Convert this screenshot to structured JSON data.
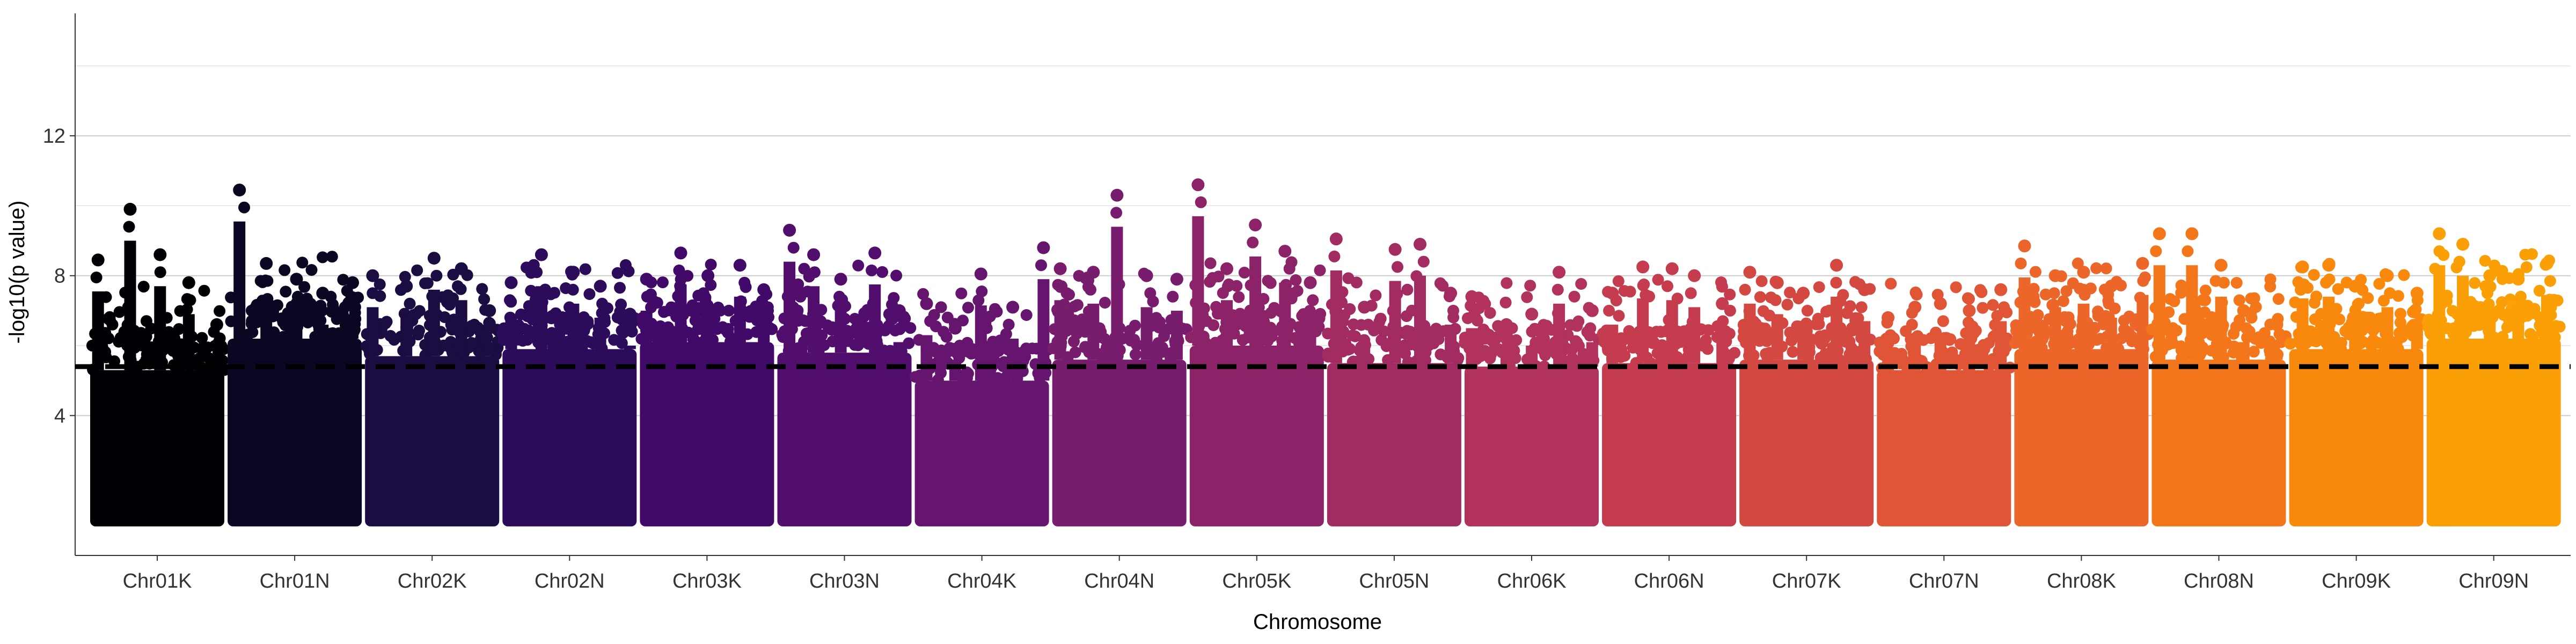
{
  "chart_data": {
    "type": "scatter",
    "subtype": "manhattan",
    "title": "",
    "xlabel": "Chromosome",
    "ylabel": "-log10(p value)",
    "ylim": [
      0,
      15.5
    ],
    "yticks": [
      4,
      8,
      12
    ],
    "grid": "horizontal major lines only",
    "threshold": 5.4,
    "threshold_style": "black dashed line",
    "baseline": 1.0,
    "chromosomes": [
      {
        "name": "Chr01K",
        "color": "#000004",
        "band_top": 5.3,
        "peaks": [
          8.45,
          9.9,
          8.6,
          7.8,
          6.6
        ]
      },
      {
        "name": "Chr01N",
        "color": "#0a0722",
        "band_top": 6.2,
        "peaks": [
          10.45,
          8.35,
          7.9,
          7.5,
          7.8
        ]
      },
      {
        "name": "Chr02K",
        "color": "#1b0c41",
        "band_top": 5.7,
        "peaks": [
          8.0,
          7.7,
          8.5,
          8.2,
          7.0
        ]
      },
      {
        "name": "Chr02N",
        "color": "#2c0b5a",
        "band_top": 5.9,
        "peaks": [
          7.8,
          8.6,
          8.1,
          7.7,
          6.9
        ]
      },
      {
        "name": "Chr03K",
        "color": "#420a68",
        "band_top": 6.1,
        "peaks": [
          7.9,
          8.65,
          8.0,
          8.3,
          7.6
        ]
      },
      {
        "name": "Chr03N",
        "color": "#520e6d",
        "band_top": 5.8,
        "peaks": [
          9.3,
          8.6,
          7.9,
          8.65,
          7.0
        ]
      },
      {
        "name": "Chr04K",
        "color": "#65156e",
        "band_top": 5.0,
        "peaks": [
          7.2,
          6.5,
          8.05,
          7.1,
          8.8
        ]
      },
      {
        "name": "Chr04N",
        "color": "#781c6d",
        "band_top": 5.6,
        "peaks": [
          8.2,
          8.1,
          10.3,
          8.0,
          7.9
        ]
      },
      {
        "name": "Chr05K",
        "color": "#8c2369",
        "band_top": 6.0,
        "peaks": [
          10.6,
          8.2,
          9.45,
          8.7,
          7.8
        ]
      },
      {
        "name": "Chr05N",
        "color": "#a22b62",
        "band_top": 5.5,
        "peaks": [
          9.05,
          7.1,
          8.75,
          8.9,
          7.5
        ]
      },
      {
        "name": "Chr06K",
        "color": "#b1325a",
        "band_top": 5.4,
        "peaks": [
          7.4,
          6.6,
          6.9,
          8.1,
          7.0
        ]
      },
      {
        "name": "Chr06N",
        "color": "#c43c4e",
        "band_top": 5.5,
        "peaks": [
          7.5,
          8.25,
          8.2,
          8.0,
          7.2
        ]
      },
      {
        "name": "Chr07K",
        "color": "#d44842",
        "band_top": 5.6,
        "peaks": [
          8.1,
          7.8,
          7.5,
          8.3,
          7.6
        ]
      },
      {
        "name": "Chr07N",
        "color": "#e05536",
        "band_top": 5.3,
        "peaks": [
          6.8,
          7.1,
          7.2,
          7.0,
          7.6
        ]
      },
      {
        "name": "Chr08K",
        "color": "#eb6628",
        "band_top": 5.9,
        "peaks": [
          8.85,
          8.0,
          8.1,
          7.7,
          8.35
        ]
      },
      {
        "name": "Chr08N",
        "color": "#f3771a",
        "band_top": 5.6,
        "peaks": [
          9.2,
          9.2,
          8.3,
          7.0,
          6.6
        ]
      },
      {
        "name": "Chr09K",
        "color": "#f8890c",
        "band_top": 5.9,
        "peaks": [
          8.25,
          8.3,
          7.7,
          8.0,
          7.5
        ]
      },
      {
        "name": "Chr09N",
        "color": "#fb9f07",
        "band_top": 6.2,
        "peaks": [
          9.2,
          8.9,
          8.0,
          7.9,
          8.35
        ]
      }
    ]
  }
}
